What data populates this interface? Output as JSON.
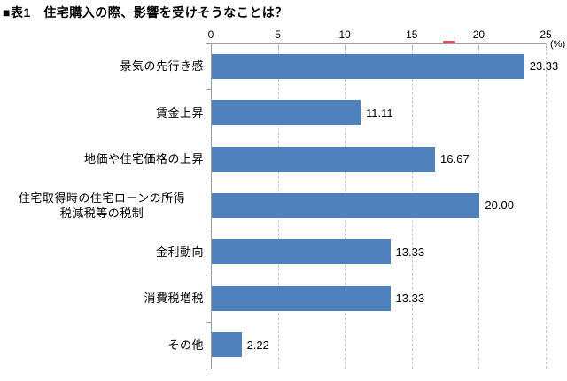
{
  "title": "■表1　住宅購入の際、影響を受けそうなことは？",
  "chart_data": {
    "type": "bar",
    "orientation": "horizontal",
    "title": "■表1　住宅購入の際、影響を受けそうなことは？",
    "categories": [
      "景気の先行き感",
      "賃金上昇",
      "地価や住宅価格の上昇",
      "住宅取得時の住宅ローンの所得\n税減税等の税制",
      "金利動向",
      "消費税増税",
      "その他"
    ],
    "values": [
      23.33,
      11.11,
      16.67,
      20.0,
      13.33,
      13.33,
      2.22
    ],
    "value_labels": [
      "23.33",
      "11.11",
      "16.67",
      "20.00",
      "13.33",
      "13.33",
      "2.22"
    ],
    "x_ticks": [
      0,
      5,
      10,
      15,
      20,
      25
    ],
    "xlim": [
      0,
      25
    ],
    "xlabel": "",
    "ylabel": "",
    "unit_label": "(%)",
    "grid": "vertical-dashed",
    "legend": "none"
  },
  "colors": {
    "bar": "#4F81BD",
    "axis": "#9e9e9e",
    "grid": "#c9c9c9",
    "text": "#000000",
    "red_mark": "#cf3f47",
    "background": "#ffffff"
  }
}
